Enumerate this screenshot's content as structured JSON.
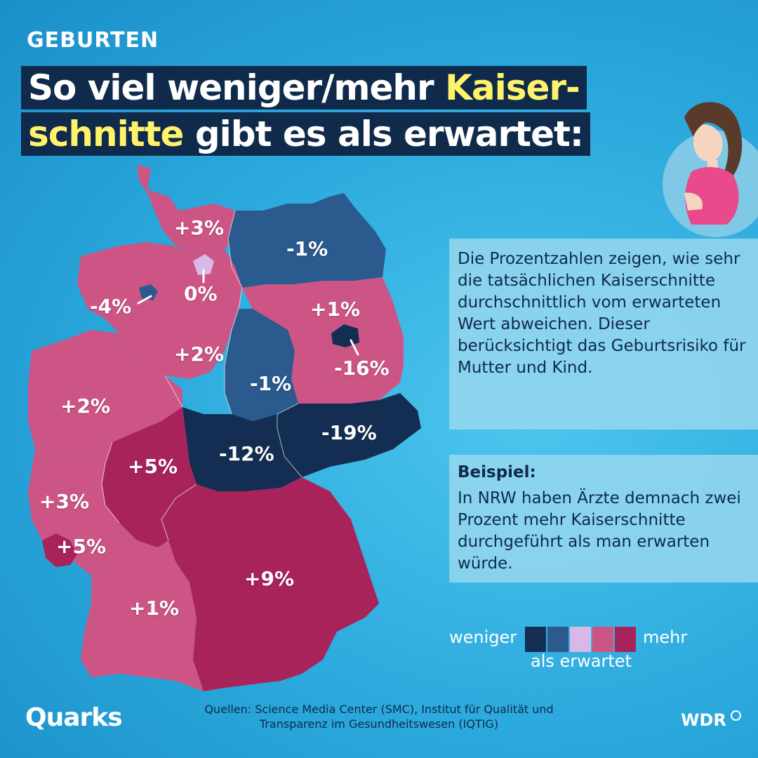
{
  "header": {
    "kicker": "GEBURTEN",
    "title_line1_a": "So viel weniger/mehr ",
    "title_line1_hl": "Kaiser-",
    "title_line2_hl": "schnitte",
    "title_line2_b": " gibt es als erwartet:"
  },
  "regions": [
    {
      "id": "schleswig-holstein",
      "label": "+3%",
      "value": 3,
      "color": "#cc5585"
    },
    {
      "id": "mecklenburg-vorpommern",
      "label": "-1%",
      "value": -1,
      "color": "#2a5a8e"
    },
    {
      "id": "hamburg",
      "label": "0%",
      "value": 0,
      "color": "#d8b8e8"
    },
    {
      "id": "bremen",
      "label": "-4%",
      "value": -4,
      "color": "#2a5a8e"
    },
    {
      "id": "niedersachsen",
      "label": "+2%",
      "value": 2,
      "color": "#cc5585"
    },
    {
      "id": "brandenburg",
      "label": "+1%",
      "value": 1,
      "color": "#cc5585"
    },
    {
      "id": "berlin",
      "label": "-16%",
      "value": -16,
      "color": "#132e52"
    },
    {
      "id": "sachsen-anhalt",
      "label": "-1%",
      "value": -1,
      "color": "#2a5a8e"
    },
    {
      "id": "nordrhein-westfalen",
      "label": "+2%",
      "value": 2,
      "color": "#cc5585"
    },
    {
      "id": "sachsen",
      "label": "-19%",
      "value": -19,
      "color": "#132e52"
    },
    {
      "id": "thueringen",
      "label": "-12%",
      "value": -12,
      "color": "#132e52"
    },
    {
      "id": "hessen",
      "label": "+5%",
      "value": 5,
      "color": "#a8235a"
    },
    {
      "id": "rheinland-pfalz",
      "label": "+3%",
      "value": 3,
      "color": "#cc5585"
    },
    {
      "id": "saarland",
      "label": "+5%",
      "value": 5,
      "color": "#a8235a"
    },
    {
      "id": "bayern",
      "label": "+9%",
      "value": 9,
      "color": "#a8235a"
    },
    {
      "id": "baden-wuerttemberg",
      "label": "+1%",
      "value": 1,
      "color": "#cc5585"
    }
  ],
  "info": {
    "description": "Die Prozentzahlen zeigen, wie sehr die tatsächlichen Kaiserschnitte durchschnittlich vom erwarteten Wert abweichen. Dieser berücksichtigt das Geburtsrisiko für Mutter und Kind.",
    "example_heading": "Beispiel:",
    "example_text": "In NRW haben Ärzte demnach zwei Prozent mehr Kaiserschnitte durchgeführt als man erwarten würde."
  },
  "legend": {
    "less": "weniger",
    "more": "mehr",
    "subtitle": "als erwartet",
    "colors": [
      "#132e52",
      "#2a5a8e",
      "#d8b8e8",
      "#cc5585",
      "#a8235a"
    ]
  },
  "footer": {
    "source_line1": "Quellen: Science Media Center (SMC), Institut für Qualität und",
    "source_line2": "Transparenz im Gesundheitswesen (IQTIG)",
    "quarks_logo": "Quarks",
    "wdr_logo": "WDR"
  },
  "icons": {
    "illustration": "pregnant-woman-icon"
  }
}
